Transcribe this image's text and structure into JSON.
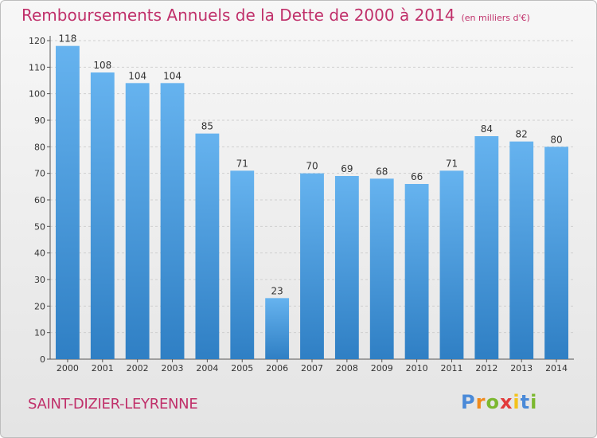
{
  "header": {
    "title": "Remboursements Annuels de la Dette de 2000 à 2014",
    "unit": "(en milliers d'€)"
  },
  "footer": {
    "town": "SAINT-DIZIER-LEYRENNE",
    "logo": "Proxiti"
  },
  "colors": {
    "bar": "#3d8fd4",
    "bar_light": "#64b0ee",
    "title": "#c0306a"
  },
  "chart_data": {
    "type": "bar",
    "title": "Remboursements Annuels de la Dette de 2000 à 2014",
    "subtitle": "(en milliers d'€)",
    "xlabel": "",
    "ylabel": "",
    "categories": [
      "2000",
      "2001",
      "2002",
      "2003",
      "2004",
      "2005",
      "2006",
      "2007",
      "2008",
      "2009",
      "2010",
      "2011",
      "2012",
      "2013",
      "2014"
    ],
    "values": [
      118,
      108,
      104,
      104,
      85,
      71,
      23,
      70,
      69,
      68,
      66,
      71,
      84,
      82,
      80
    ],
    "ylim": [
      0,
      120
    ],
    "yticks": [
      0,
      10,
      20,
      30,
      40,
      50,
      60,
      70,
      80,
      90,
      100,
      110,
      120
    ],
    "grid": true,
    "legend": "none"
  }
}
